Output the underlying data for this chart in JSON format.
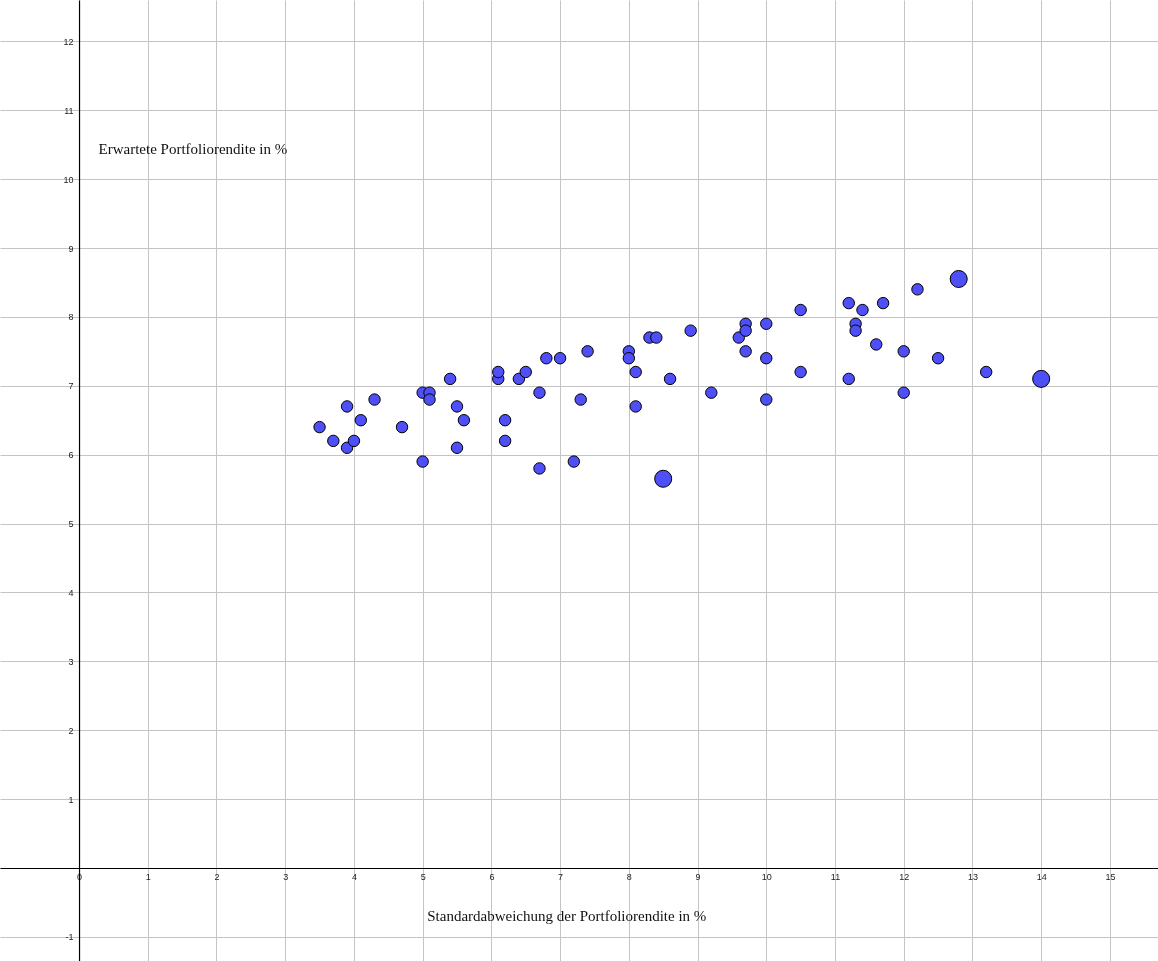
{
  "chart_data": {
    "type": "bubble",
    "xlabel": "Standardabweichung der Portfoliorendite in %",
    "ylabel": "Erwartete Portfoliorendite in %",
    "x": [
      3.5,
      3.7,
      3.9,
      3.9,
      4.0,
      4.1,
      4.3,
      4.7,
      5.0,
      5.1,
      5.1,
      5.0,
      5.4,
      5.5,
      5.6,
      5.5,
      6.1,
      6.1,
      6.2,
      6.2,
      6.4,
      6.5,
      6.7,
      6.7,
      6.8,
      7.0,
      7.2,
      7.3,
      7.4,
      8.0,
      8.0,
      8.1,
      8.1,
      8.3,
      8.4,
      8.6,
      8.5,
      8.9,
      9.2,
      9.6,
      9.7,
      9.7,
      9.7,
      10.0,
      10.0,
      10.0,
      10.5,
      10.5,
      11.2,
      11.2,
      11.3,
      11.3,
      11.4,
      11.6,
      11.7,
      12.0,
      12.0,
      12.2,
      12.5,
      12.8,
      13.2,
      14.0
    ],
    "series": [
      {
        "color": "#4f4ff7",
        "values": [
          6.4,
          6.2,
          6.7,
          6.1,
          6.2,
          6.5,
          6.8,
          6.4,
          6.9,
          6.9,
          6.8,
          5.9,
          7.1,
          6.7,
          6.5,
          6.1,
          7.1,
          7.2,
          6.5,
          6.2,
          7.1,
          7.2,
          6.9,
          5.8,
          7.4,
          7.4,
          5.9,
          6.8,
          7.5,
          7.5,
          7.4,
          7.2,
          6.7,
          7.7,
          7.7,
          7.1,
          5.65,
          7.8,
          6.9,
          7.7,
          7.9,
          7.8,
          7.5,
          7.9,
          7.4,
          6.8,
          8.1,
          7.2,
          8.2,
          7.1,
          7.9,
          7.8,
          8.1,
          7.6,
          8.2,
          7.5,
          6.9,
          8.4,
          7.4,
          8.55,
          7.2,
          7.1
        ],
        "sizes": [
          0.45,
          0.45,
          0.45,
          0.45,
          0.45,
          0.45,
          0.45,
          0.45,
          0.45,
          0.45,
          0.45,
          0.45,
          0.45,
          0.45,
          0.45,
          0.45,
          0.45,
          0.45,
          0.45,
          0.45,
          0.45,
          0.45,
          0.45,
          0.45,
          0.45,
          0.45,
          0.45,
          0.45,
          0.45,
          0.45,
          0.45,
          0.45,
          0.45,
          0.45,
          0.45,
          0.45,
          1,
          0.45,
          0.45,
          0.45,
          0.45,
          0.45,
          0.45,
          0.45,
          0.45,
          0.45,
          0.45,
          0.45,
          0.45,
          0.45,
          0.45,
          0.45,
          0.45,
          0.45,
          0.45,
          0.45,
          0.45,
          0.45,
          0.45,
          1,
          0.45,
          1
        ]
      }
    ],
    "xlim": [
      -1.15,
      15.7
    ],
    "ylim": [
      -1.35,
      12.6
    ],
    "xticks": [
      0,
      1,
      2,
      3,
      4,
      5,
      6,
      7,
      8,
      9,
      10,
      11,
      12,
      13,
      14,
      15
    ],
    "yticks": [
      -1,
      {
        "value": 0,
        "label": null
      },
      1,
      2,
      3,
      4,
      5,
      6,
      7,
      8,
      9,
      10,
      11,
      12
    ],
    "grid": true,
    "marker": "circle"
  }
}
